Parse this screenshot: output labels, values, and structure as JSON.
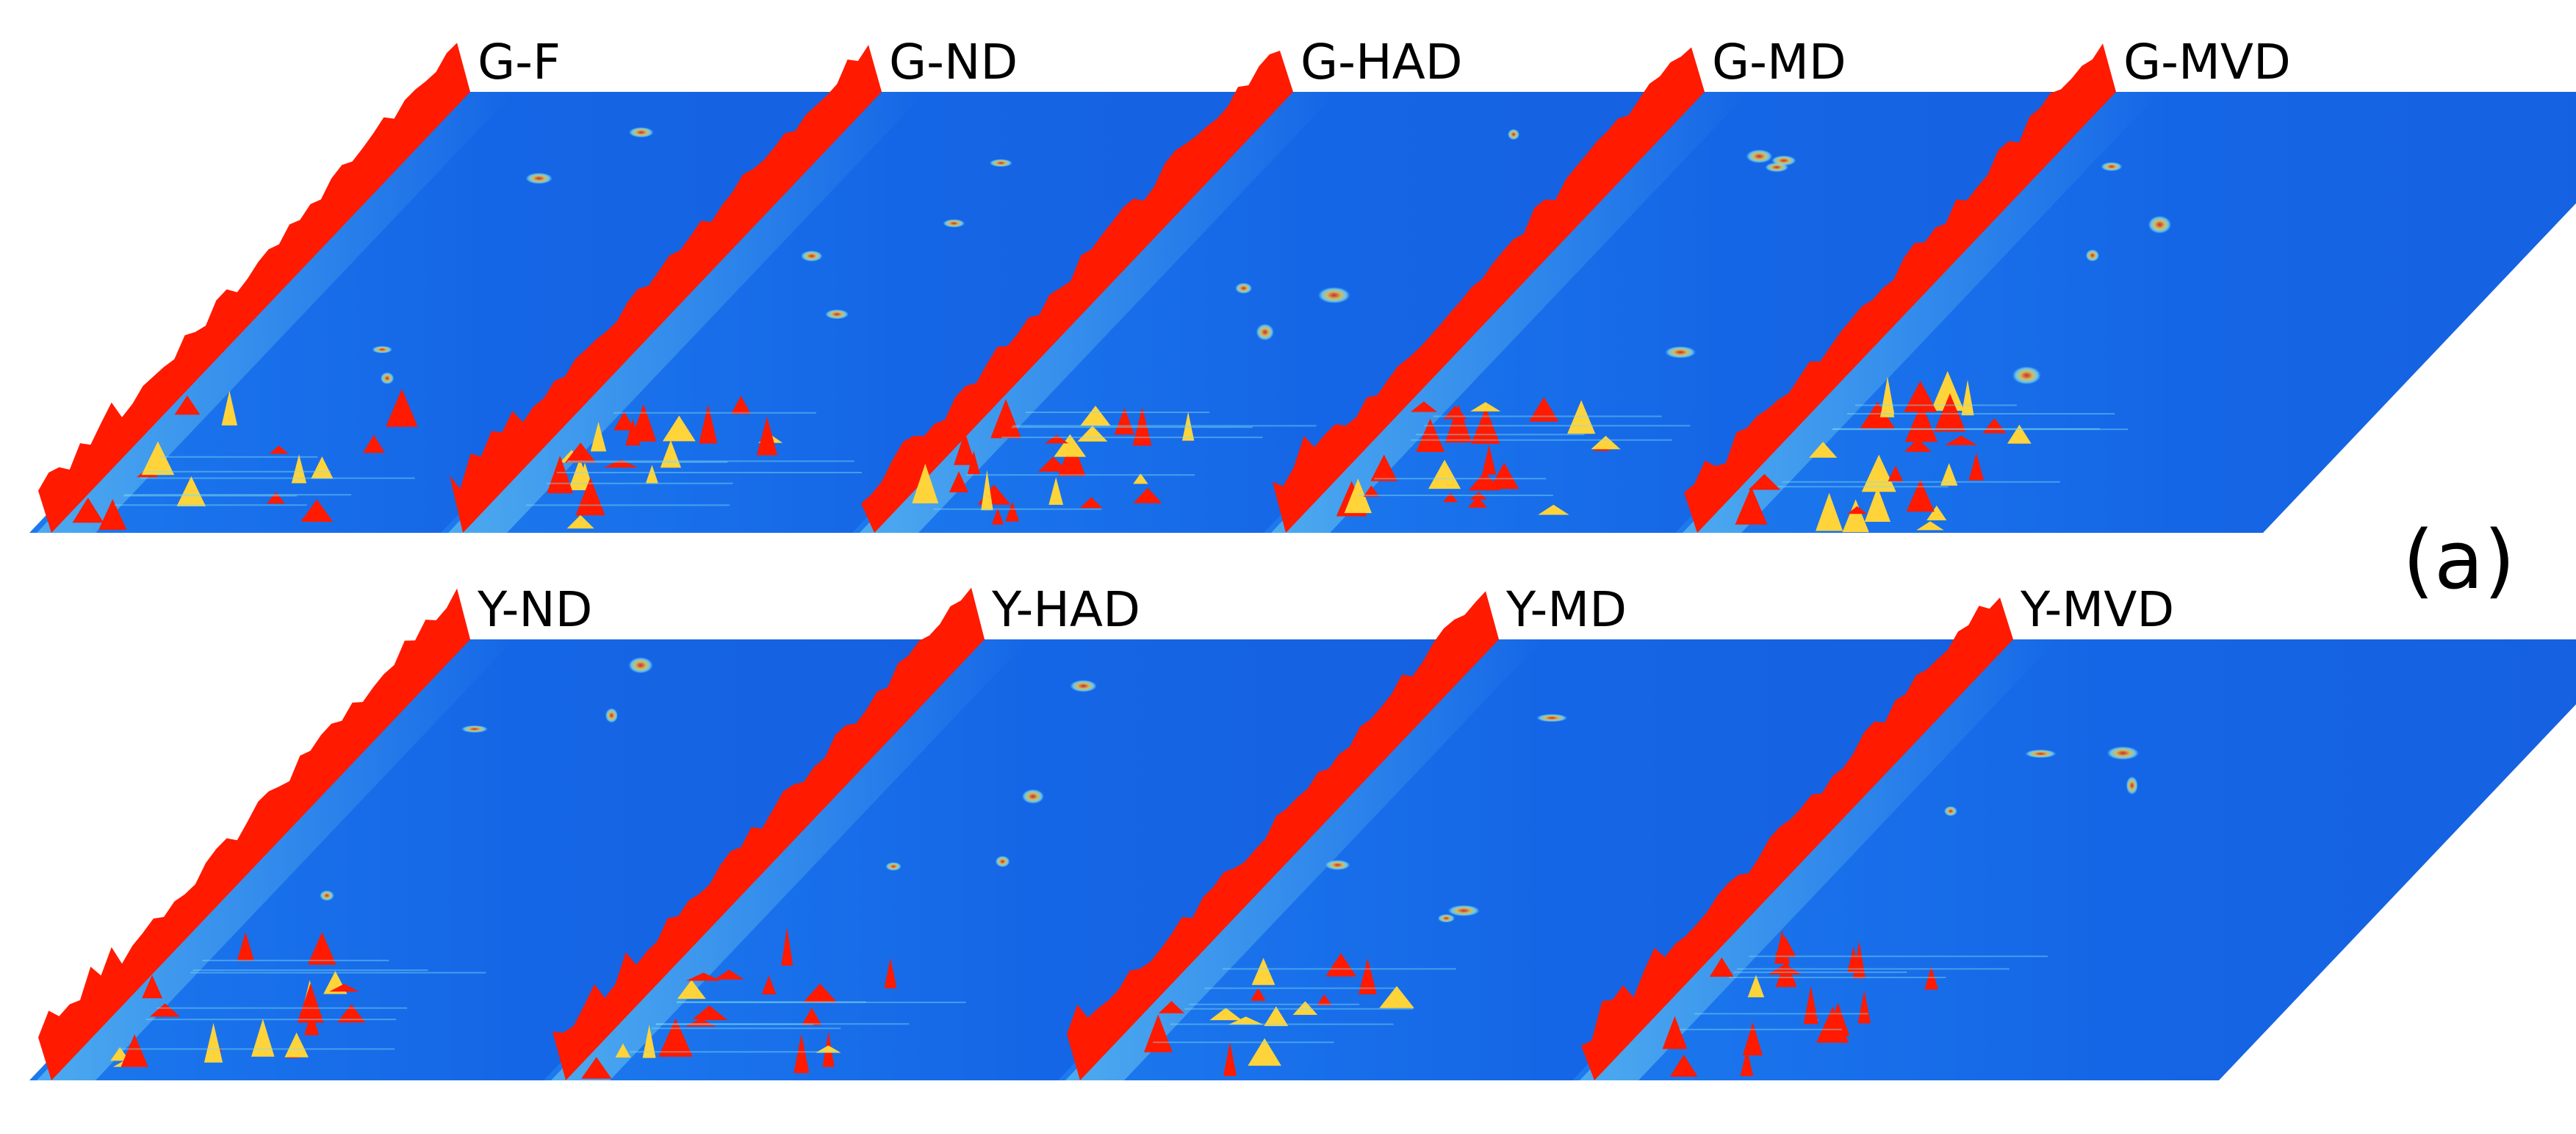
{
  "figure_label": "(a)",
  "chart_data": {
    "type": "heatmap",
    "rows": [
      {
        "panels": [
          {
            "label": "G-F",
            "hot_spots": 14
          },
          {
            "label": "G-ND",
            "hot_spots": 20
          },
          {
            "label": "G-HAD",
            "hot_spots": 22
          },
          {
            "label": "G-MD",
            "hot_spots": 22
          },
          {
            "label": "G-MVD",
            "hot_spots": 26
          }
        ]
      },
      {
        "panels": [
          {
            "label": "Y-ND",
            "hot_spots": 18
          },
          {
            "label": "Y-HAD",
            "hot_spots": 18
          },
          {
            "label": "Y-MD",
            "hot_spots": 14
          },
          {
            "label": "Y-MVD",
            "hot_spots": 18
          }
        ]
      }
    ],
    "colors": {
      "background": "#1566e6",
      "ridge": "#ff1a00",
      "mid": "#ffd43b",
      "low": "#7fdcf0"
    }
  }
}
